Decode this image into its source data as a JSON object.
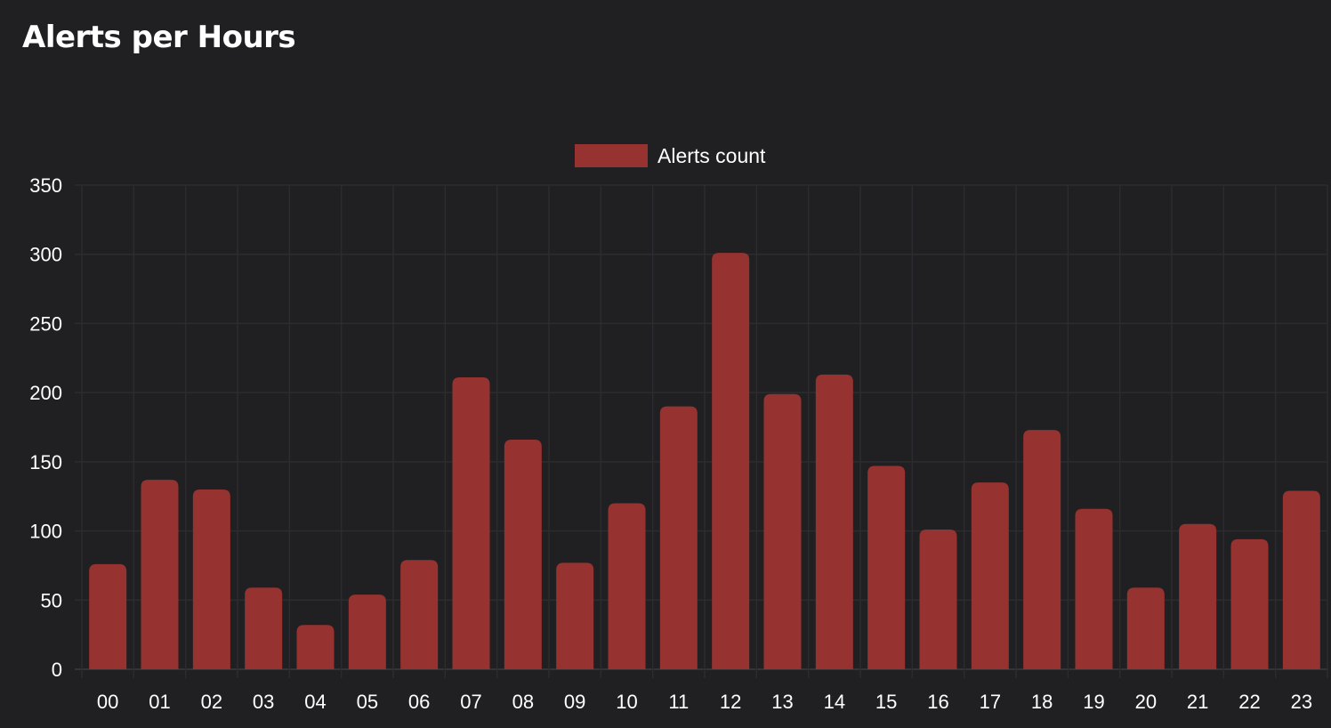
{
  "panel": {
    "title": "Alerts per Hours"
  },
  "chart_data": {
    "type": "bar",
    "categories": [
      "00",
      "01",
      "02",
      "03",
      "04",
      "05",
      "06",
      "07",
      "08",
      "09",
      "10",
      "11",
      "12",
      "13",
      "14",
      "15",
      "16",
      "17",
      "18",
      "19",
      "20",
      "21",
      "22",
      "23"
    ],
    "series": [
      {
        "name": "Alerts count",
        "values": [
          76,
          137,
          130,
          59,
          32,
          54,
          79,
          211,
          166,
          77,
          120,
          190,
          301,
          199,
          213,
          147,
          101,
          135,
          173,
          116,
          59,
          105,
          94,
          129
        ]
      }
    ],
    "title": "",
    "xlabel": "",
    "ylabel": "",
    "ylim": [
      0,
      350
    ],
    "yticks": [
      0,
      50,
      100,
      150,
      200,
      250,
      300,
      350
    ],
    "grid": true,
    "legend": "top-center",
    "bar_color": "#963230",
    "grid_color": "#2c2c2f",
    "background": "#202023"
  }
}
